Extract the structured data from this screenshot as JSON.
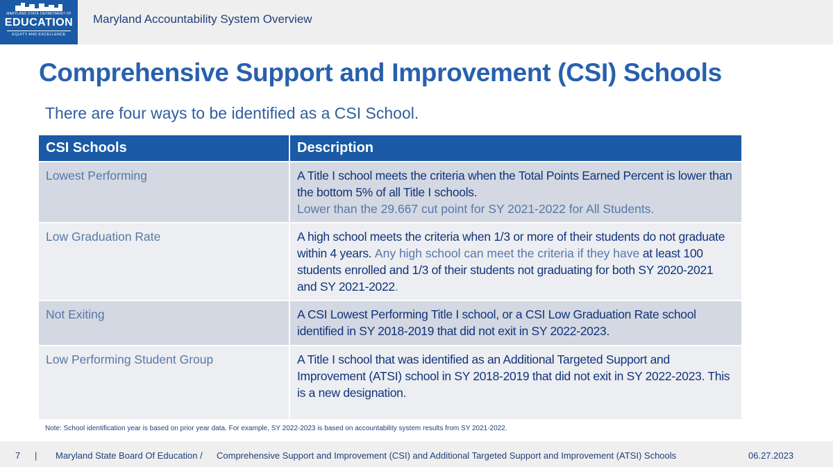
{
  "header": {
    "logo_agency": "MARYLAND STATE DEPARTMENT OF",
    "logo_name": "EDUCATION",
    "logo_motto": "EQUITY AND EXCELLENCE",
    "title": "Maryland Accountability System Overview"
  },
  "slide": {
    "title": "Comprehensive Support and Improvement (CSI) Schools",
    "subtitle": "There are four ways to be identified as a CSI School."
  },
  "table": {
    "headers": [
      "CSI Schools",
      "Description"
    ],
    "rows": [
      {
        "name": "Lowest Performing",
        "desc_main": "A Title I school meets the criteria when the Total Points Earned Percent is lower than the bottom 5% of all Title I schools.",
        "desc_note": "Lower than the 29.667 cut point for SY 2021-2022 for All Students."
      },
      {
        "name": "Low Graduation Rate",
        "desc_main": "A high school meets the criteria when 1/3 or more of their students do not graduate within 4 years.",
        "desc_note": "Any high school can meet the criteria if they have",
        "desc_tail": "at least 100 students enrolled and 1/3 of their students not graduating for both SY 2020-2021 and SY 2021-2022",
        "desc_end": "."
      },
      {
        "name": "Not Exiting",
        "desc_main": "A CSI Lowest Performing Title I school, or a CSI Low Graduation Rate school identified in SY 2018-2019 that did not exit in SY 2022-2023."
      },
      {
        "name": "Low Performing Student Group",
        "desc_main": "A Title I school that was identified as an Additional Targeted Support and Improvement (ATSI) school in SY 2018-2019 that did not exit in SY 2022-2023. This is a new designation."
      }
    ]
  },
  "footnote": "Note: School identification year is based on prior year data. For example, SY 2022-2023 is based on accountability system results from SY 2021-2022.",
  "footer": {
    "page_number": "7",
    "separator": "|",
    "org": "Maryland State Board Of Education /",
    "topic": "Comprehensive Support and Improvement (CSI) and Additional Targeted Support and Improvement (ATSI) Schools",
    "date": "06.27.2023"
  },
  "colors": {
    "brand_blue": "#1a5aa6",
    "title_blue": "#2860ad",
    "row_dark": "#d3d8e2",
    "row_light": "#eceef2"
  }
}
